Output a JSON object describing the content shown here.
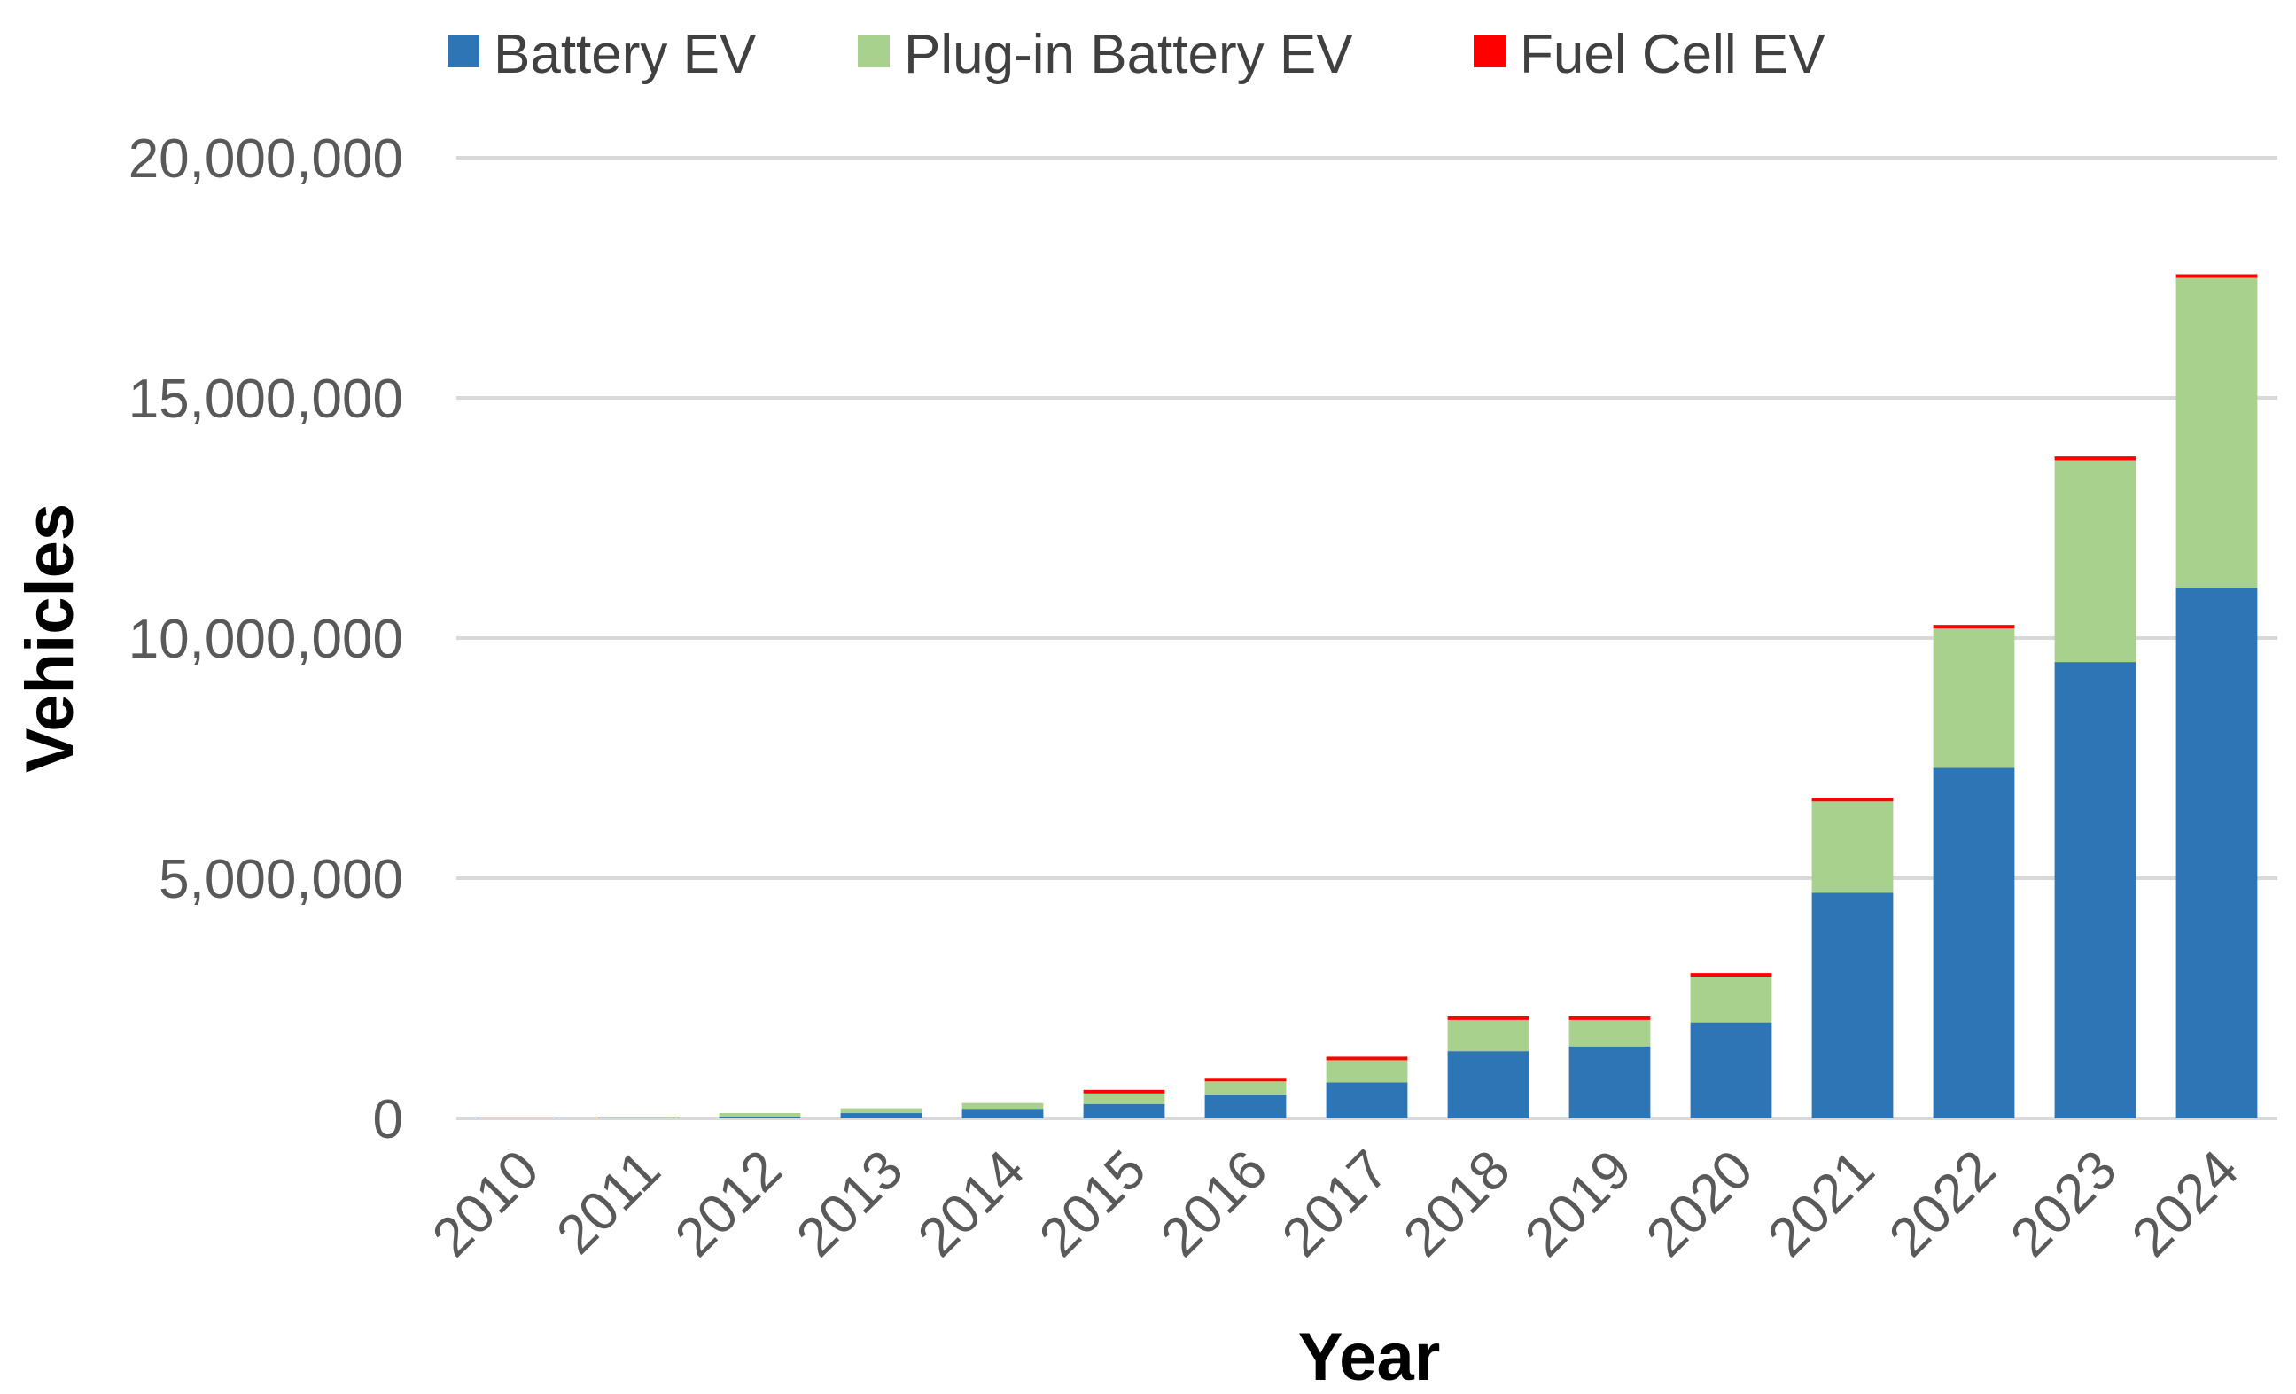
{
  "chart_data": {
    "type": "bar",
    "stacked": true,
    "title": "",
    "xlabel": "Year",
    "ylabel": "Vehicles",
    "ylim": [
      0,
      20000000
    ],
    "yticks": [
      0,
      5000000,
      10000000,
      15000000,
      20000000
    ],
    "ytick_labels": [
      "0",
      "5,000,000",
      "10,000,000",
      "15,000,000",
      "20,000,000"
    ],
    "grid": true,
    "legend_position": "top",
    "categories": [
      "2010",
      "2011",
      "2012",
      "2013",
      "2014",
      "2015",
      "2016",
      "2017",
      "2018",
      "2019",
      "2020",
      "2021",
      "2022",
      "2023",
      "2024"
    ],
    "series": [
      {
        "name": "Battery EV",
        "color": "#2e75b6",
        "values": [
          10000,
          20000,
          40000,
          110000,
          200000,
          300000,
          480000,
          750000,
          1400000,
          1500000,
          2000000,
          4700000,
          7300000,
          9500000,
          11050000
        ]
      },
      {
        "name": "Plug-in Battery EV",
        "color": "#a9d18e",
        "values": [
          0,
          10000,
          70000,
          100000,
          120000,
          220000,
          290000,
          460000,
          650000,
          550000,
          950000,
          1900000,
          2900000,
          4200000,
          6450000
        ]
      },
      {
        "name": "Fuel Cell EV",
        "color": "#ff0000",
        "values": [
          0,
          0,
          0,
          0,
          0,
          1000,
          2000,
          3000,
          5000,
          7000,
          8000,
          16000,
          20000,
          80000,
          20000
        ]
      }
    ]
  }
}
